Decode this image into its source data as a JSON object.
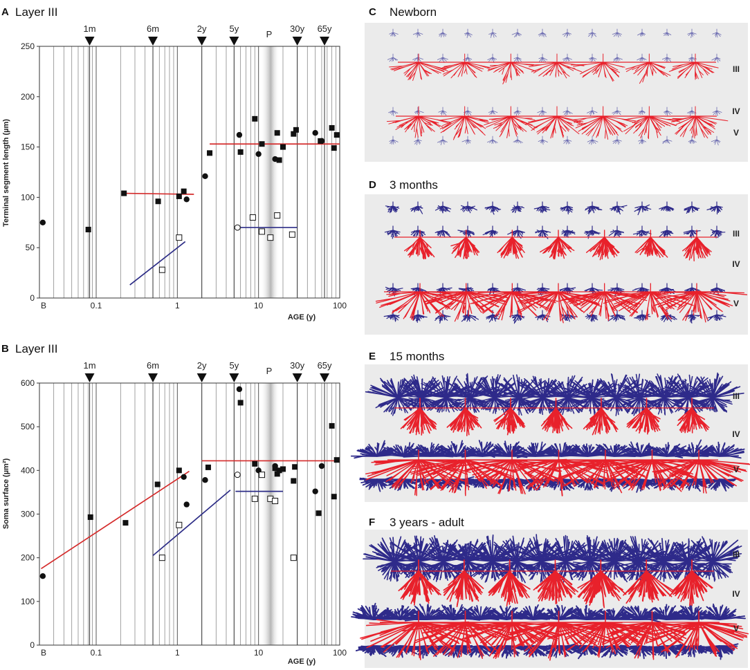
{
  "chart_data": [
    {
      "type": "scatter",
      "letter": "A",
      "title": "Layer III",
      "ylabel": "Terminal segment length (µm)",
      "xlabel": "AGE (y)",
      "xscale": "log",
      "xlim": [
        0.02,
        100
      ],
      "ylim": [
        0,
        250
      ],
      "yticks": [
        "0",
        "50",
        "100",
        "150",
        "200",
        "250"
      ],
      "xticks": [
        {
          "value": 0.02,
          "label": "B"
        },
        {
          "value": 0.1,
          "label": "0.1"
        },
        {
          "value": 1,
          "label": "1"
        },
        {
          "value": 10,
          "label": "10"
        },
        {
          "value": 100,
          "label": "100"
        }
      ],
      "markers": [
        {
          "label": "1m",
          "x": 0.083
        },
        {
          "label": "6m",
          "x": 0.5
        },
        {
          "label": "2y",
          "x": 2
        },
        {
          "label": "5y",
          "x": 5
        },
        {
          "label": "30y",
          "x": 30
        },
        {
          "label": "65y",
          "x": 65
        }
      ],
      "puberty_label": "P",
      "series": [
        {
          "name": "filled-squares",
          "marker": "filled-square",
          "points": [
            [
              0.08,
              68
            ],
            [
              0.22,
              104
            ],
            [
              0.58,
              96
            ],
            [
              1.05,
              101
            ],
            [
              1.2,
              106
            ],
            [
              2.5,
              144
            ],
            [
              6,
              145
            ],
            [
              9,
              178
            ],
            [
              11,
              153
            ],
            [
              17,
              164
            ],
            [
              18,
              137
            ],
            [
              20,
              150
            ],
            [
              27,
              163
            ],
            [
              29,
              167
            ],
            [
              58,
              156
            ],
            [
              80,
              169
            ],
            [
              85,
              149
            ],
            [
              92,
              162
            ]
          ]
        },
        {
          "name": "filled-circles",
          "marker": "filled-circle",
          "points": [
            [
              0.022,
              75
            ],
            [
              1.3,
              98
            ],
            [
              2.2,
              121
            ],
            [
              5.8,
              162
            ],
            [
              10,
              143
            ],
            [
              16,
              138
            ],
            [
              50,
              164
            ],
            [
              60,
              156
            ]
          ]
        },
        {
          "name": "open-squares",
          "marker": "open-square",
          "points": [
            [
              0.65,
              28
            ],
            [
              1.05,
              60
            ],
            [
              8.5,
              80
            ],
            [
              11,
              66
            ],
            [
              14,
              60
            ],
            [
              17,
              82
            ],
            [
              26,
              63
            ]
          ]
        },
        {
          "name": "open-circles",
          "marker": "open-circle",
          "points": [
            [
              5.5,
              70
            ]
          ]
        }
      ],
      "fit_lines": [
        {
          "color": "#d42a2a",
          "x": [
            0.22,
            1.6
          ],
          "y": [
            104,
            103
          ]
        },
        {
          "color": "#d42a2a",
          "x": [
            2.5,
            100
          ],
          "y": [
            153,
            153
          ]
        },
        {
          "color": "#2c2c86",
          "x": [
            0.26,
            1.25
          ],
          "y": [
            13,
            56
          ]
        },
        {
          "color": "#2c2c86",
          "x": [
            5.5,
            30
          ],
          "y": [
            70,
            70
          ]
        }
      ]
    },
    {
      "type": "scatter",
      "letter": "B",
      "title": "Layer III",
      "ylabel": "Soma surface (µm²)",
      "xlabel": "AGE (y)",
      "xscale": "log",
      "xlim": [
        0.02,
        100
      ],
      "ylim": [
        0,
        600
      ],
      "yticks": [
        "0",
        "100",
        "200",
        "300",
        "400",
        "500",
        "600"
      ],
      "xticks": [
        {
          "value": 0.02,
          "label": "B"
        },
        {
          "value": 0.1,
          "label": "0.1"
        },
        {
          "value": 1,
          "label": "1"
        },
        {
          "value": 10,
          "label": "10"
        },
        {
          "value": 100,
          "label": "100"
        }
      ],
      "markers": [
        {
          "label": "1m",
          "x": 0.083
        },
        {
          "label": "6m",
          "x": 0.5
        },
        {
          "label": "2y",
          "x": 2
        },
        {
          "label": "5y",
          "x": 5
        },
        {
          "label": "30y",
          "x": 30
        },
        {
          "label": "65y",
          "x": 65
        }
      ],
      "puberty_label": "P",
      "series": [
        {
          "name": "filled-squares",
          "marker": "filled-square",
          "points": [
            [
              0.085,
              293
            ],
            [
              0.23,
              280
            ],
            [
              0.57,
              368
            ],
            [
              1.05,
              400
            ],
            [
              2.4,
              407
            ],
            [
              6,
              555
            ],
            [
              9,
              415
            ],
            [
              16,
              405
            ],
            [
              17,
              392
            ],
            [
              18,
              400
            ],
            [
              20,
              403
            ],
            [
              27,
              376
            ],
            [
              28,
              408
            ],
            [
              55,
              302
            ],
            [
              80,
              502
            ],
            [
              85,
              340
            ],
            [
              92,
              424
            ]
          ]
        },
        {
          "name": "filled-circles",
          "marker": "filled-circle",
          "points": [
            [
              0.022,
              158
            ],
            [
              1.2,
              385
            ],
            [
              1.3,
              322
            ],
            [
              2.2,
              378
            ],
            [
              5.8,
              586
            ],
            [
              10,
              400
            ],
            [
              16,
              410
            ],
            [
              50,
              352
            ],
            [
              60,
              410
            ]
          ]
        },
        {
          "name": "open-squares",
          "marker": "open-square",
          "points": [
            [
              0.65,
              200
            ],
            [
              1.05,
              275
            ],
            [
              9,
              335
            ],
            [
              11,
              390
            ],
            [
              14,
              335
            ],
            [
              16,
              330
            ],
            [
              27,
              200
            ]
          ]
        },
        {
          "name": "open-circles",
          "marker": "open-circle",
          "points": [
            [
              5.5,
              390
            ]
          ]
        }
      ],
      "fit_lines": [
        {
          "color": "#d42a2a",
          "x": [
            0.021,
            1.4
          ],
          "y": [
            175,
            398
          ]
        },
        {
          "color": "#d42a2a",
          "x": [
            2,
            100
          ],
          "y": [
            422,
            422
          ]
        },
        {
          "color": "#2c2c86",
          "x": [
            0.5,
            4.5
          ],
          "y": [
            205,
            355
          ]
        },
        {
          "color": "#2c2c86",
          "x": [
            5.2,
            20
          ],
          "y": [
            352,
            352
          ]
        }
      ]
    }
  ],
  "diagrams": [
    {
      "letter": "C",
      "title": "Newborn",
      "layers": [
        "III",
        "IV",
        "V"
      ]
    },
    {
      "letter": "D",
      "title": "3 months",
      "layers": [
        "III",
        "IV",
        "V"
      ]
    },
    {
      "letter": "E",
      "title": "15 months",
      "layers": [
        "III",
        "IV",
        "V"
      ]
    },
    {
      "letter": "F",
      "title": "3 years - adult",
      "layers": [
        "III",
        "IV",
        "V"
      ]
    }
  ],
  "colors": {
    "red": "#e8212b",
    "blue": "#2e2a8a",
    "light_blue": "#6a6ab0",
    "panel_bg": "#ebebeb",
    "fit_red": "#d42a2a",
    "fit_blue": "#2c2c86"
  }
}
